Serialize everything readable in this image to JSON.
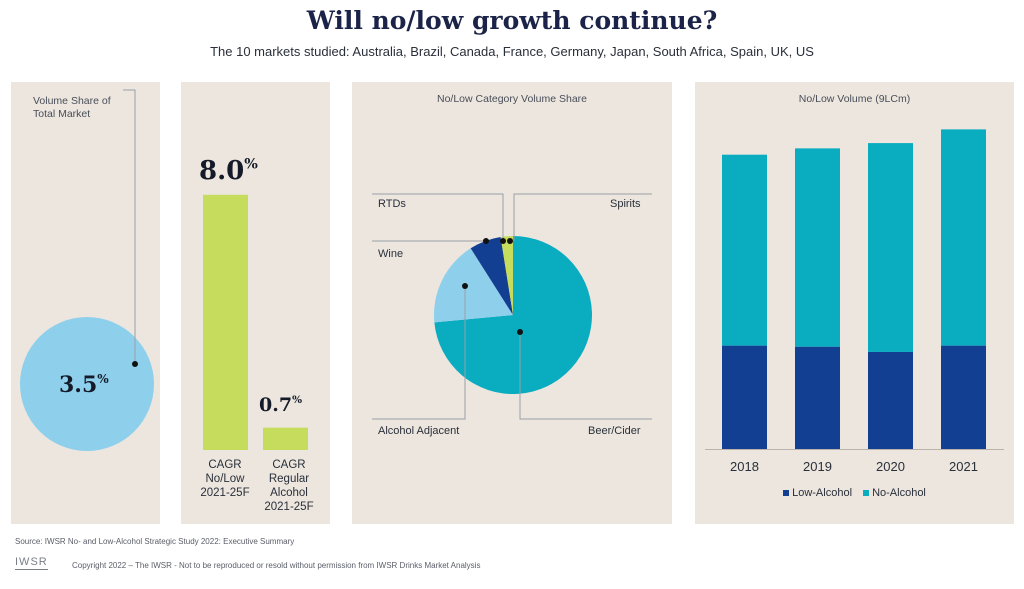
{
  "header": {
    "title": "Will no/low growth continue?",
    "subtitle": "The 10 markets studied: Australia, Brazil, Canada, France, Germany, Japan, South Africa, Spain, UK, US"
  },
  "panel1": {
    "label": "Volume Share of Total Market",
    "value_num": "3.5",
    "value_unit": "%",
    "circle_color": "#8ed0ec"
  },
  "colors": {
    "cagr_bar": "#c5dc5c",
    "no_alcohol": "#0aacc0",
    "low_alcohol": "#123f92",
    "wine": "#8ed0ec",
    "rtds": "#123f92",
    "spirits": "#c5dc5c",
    "panel_bg": "#ece6df"
  },
  "chart_data": [
    {
      "type": "bar",
      "categories": [
        "CAGR No/Low 2021-25F",
        "CAGR Regular Alcohol 2021-25F"
      ],
      "category_lines": [
        [
          "CAGR",
          "No/Low",
          "2021-25F"
        ],
        [
          "CAGR",
          "Regular",
          "Alcohol",
          "2021-25F"
        ]
      ],
      "values": [
        8.0,
        0.7
      ],
      "value_labels": [
        "8.0",
        "0.7"
      ],
      "unit": "%"
    },
    {
      "type": "pie",
      "title": "No/Low Category Volume Share",
      "labels": [
        "Beer/Cider",
        "Alcohol Adjacent",
        "Wine",
        "RTDs",
        "Spirits"
      ],
      "values": [
        73.5,
        0,
        17.5,
        6.5,
        2.5
      ]
    },
    {
      "type": "bar",
      "stacked": true,
      "title": "No/Low Volume (9LCm)",
      "categories": [
        "2018",
        "2019",
        "2020",
        "2021"
      ],
      "series": [
        {
          "name": "Low-Alcohol",
          "values": [
            98,
            97,
            92,
            98
          ]
        },
        {
          "name": "No-Alcohol",
          "values": [
            181,
            188,
            198,
            205
          ]
        }
      ],
      "ylim": [
        0,
        310
      ],
      "legend": "bottom"
    }
  ],
  "footer": {
    "source": "Source: IWSR No- and Low-Alcohol Strategic Study 2022: Executive Summary",
    "logo": "IWSR",
    "copyright": "Copyright 2022 – The IWSR - Not to be reproduced or resold without permission from IWSR Drinks Market Analysis"
  }
}
